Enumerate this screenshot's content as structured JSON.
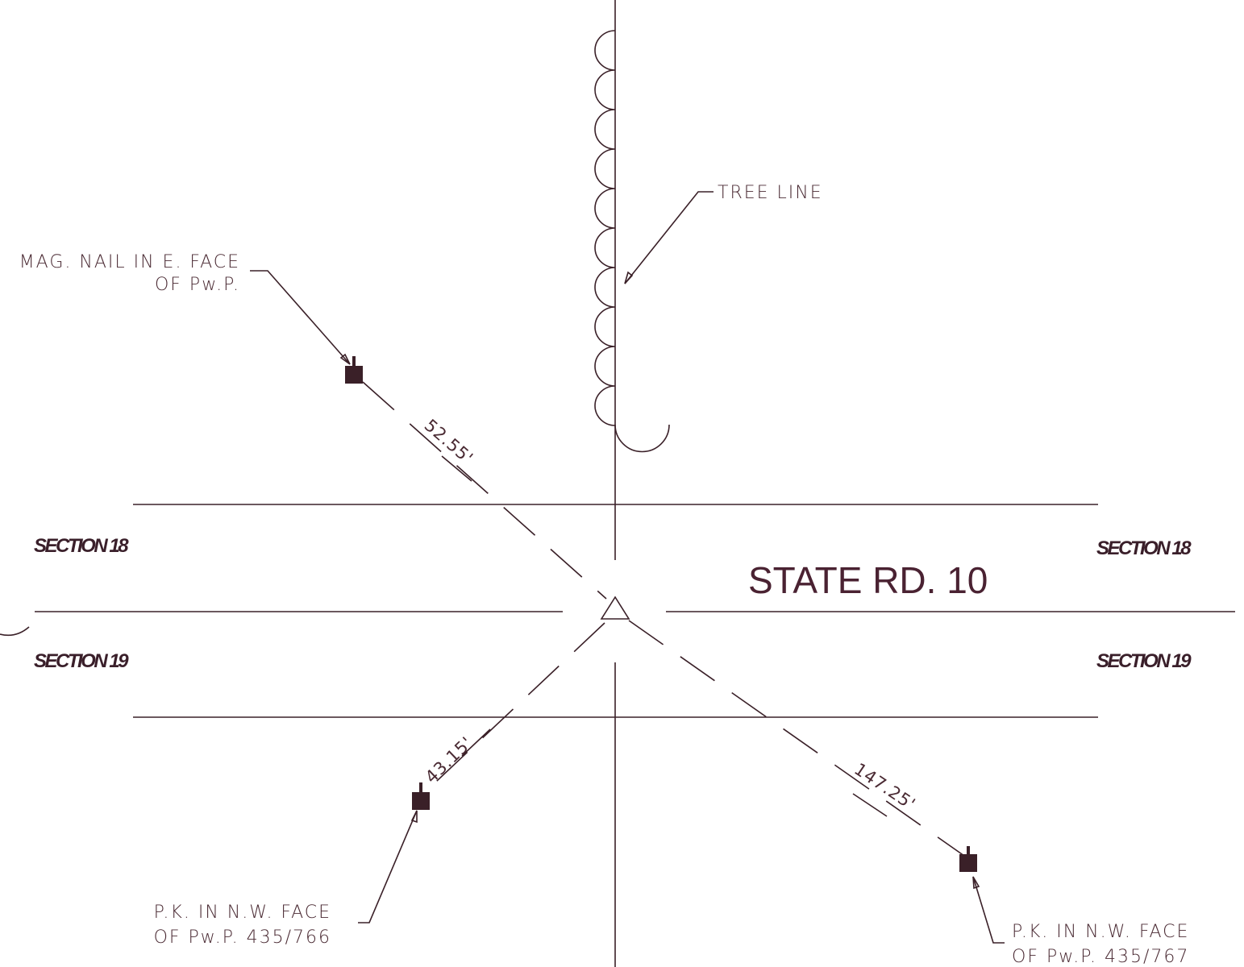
{
  "labels": {
    "tree_line": "TREE LINE",
    "mag_nail": [
      "MAG. NAIL IN E. FACE",
      "OF Pw.P."
    ],
    "pk_766": [
      "P.K. IN N.W. FACE",
      "OF Pw.P. 435/766"
    ],
    "pk_767": [
      "P.K. IN N.W. FACE",
      "OF Pw.P. 435/767"
    ]
  },
  "road": "STATE RD. 10",
  "sections": {
    "top_left": "SECTION 18",
    "top_right": "SECTION 18",
    "bottom_left": "SECTION 19",
    "bottom_right": "SECTION 19"
  },
  "distances": {
    "mag_nail": "52.55'",
    "pk_766": "43.15'",
    "pk_767": "147.25'"
  }
}
